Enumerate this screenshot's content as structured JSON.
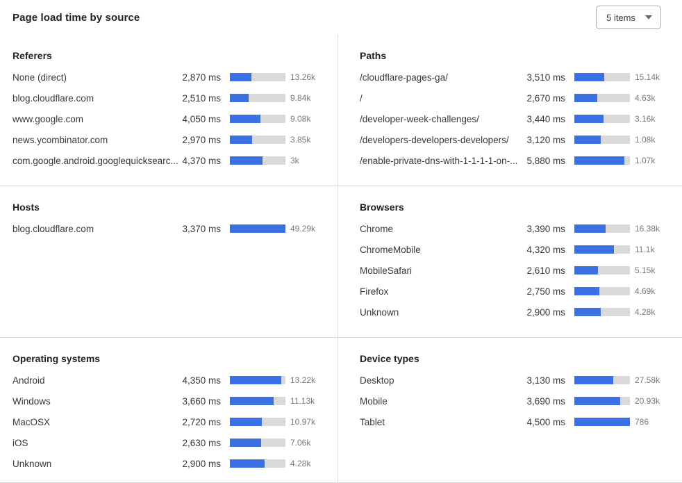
{
  "title": "Page load time by source",
  "dropdown": {
    "label": "5 items"
  },
  "colors": {
    "bar_fill": "#3b70e2",
    "bar_track": "#d9d9d9",
    "muted_text": "#797979",
    "divider": "#d9d9d9"
  },
  "chart_data": {
    "type": "bar",
    "unit": "ms",
    "title": "Page load time by source",
    "legend_position": "none",
    "panels": [
      {
        "title": "Referers",
        "id": "referers",
        "scale_max_ms": 7450,
        "rows": [
          {
            "label": "None (direct)",
            "ms": 2870,
            "ms_display": "2,870 ms",
            "count": "13.26k"
          },
          {
            "label": "blog.cloudflare.com",
            "ms": 2510,
            "ms_display": "2,510 ms",
            "count": "9.84k"
          },
          {
            "label": "www.google.com",
            "ms": 4050,
            "ms_display": "4,050 ms",
            "count": "9.08k"
          },
          {
            "label": "news.ycombinator.com",
            "ms": 2970,
            "ms_display": "2,970 ms",
            "count": "3.85k"
          },
          {
            "label": "com.google.android.googlequicksearc...",
            "ms": 4370,
            "ms_display": "4,370 ms",
            "count": "3k"
          }
        ]
      },
      {
        "title": "Paths",
        "id": "paths",
        "scale_max_ms": 6550,
        "rows": [
          {
            "label": "/cloudflare-pages-ga/",
            "ms": 3510,
            "ms_display": "3,510 ms",
            "count": "15.14k"
          },
          {
            "label": "/",
            "ms": 2670,
            "ms_display": "2,670 ms",
            "count": "4.63k"
          },
          {
            "label": "/developer-week-challenges/",
            "ms": 3440,
            "ms_display": "3,440 ms",
            "count": "3.16k"
          },
          {
            "label": "/developers-developers-developers/",
            "ms": 3120,
            "ms_display": "3,120 ms",
            "count": "1.08k"
          },
          {
            "label": "/enable-private-dns-with-1-1-1-1-on-...",
            "ms": 5880,
            "ms_display": "5,880 ms",
            "count": "1.07k"
          }
        ]
      },
      {
        "title": "Hosts",
        "id": "hosts",
        "scale_max_ms": 3370,
        "rows": [
          {
            "label": "blog.cloudflare.com",
            "ms": 3370,
            "ms_display": "3,370 ms",
            "count": "49.29k"
          }
        ]
      },
      {
        "title": "Browsers",
        "id": "browsers",
        "scale_max_ms": 6050,
        "rows": [
          {
            "label": "Chrome",
            "ms": 3390,
            "ms_display": "3,390 ms",
            "count": "16.38k"
          },
          {
            "label": "ChromeMobile",
            "ms": 4320,
            "ms_display": "4,320 ms",
            "count": "11.1k"
          },
          {
            "label": "MobileSafari",
            "ms": 2610,
            "ms_display": "2,610 ms",
            "count": "5.15k"
          },
          {
            "label": "Firefox",
            "ms": 2750,
            "ms_display": "2,750 ms",
            "count": "4.69k"
          },
          {
            "label": "Unknown",
            "ms": 2900,
            "ms_display": "2,900 ms",
            "count": "4.28k"
          }
        ]
      },
      {
        "title": "Operating systems",
        "id": "operating-systems",
        "scale_max_ms": 4680,
        "rows": [
          {
            "label": "Android",
            "ms": 4350,
            "ms_display": "4,350 ms",
            "count": "13.22k"
          },
          {
            "label": "Windows",
            "ms": 3660,
            "ms_display": "3,660 ms",
            "count": "11.13k"
          },
          {
            "label": "MacOSX",
            "ms": 2720,
            "ms_display": "2,720 ms",
            "count": "10.97k"
          },
          {
            "label": "iOS",
            "ms": 2630,
            "ms_display": "2,630 ms",
            "count": "7.06k"
          },
          {
            "label": "Unknown",
            "ms": 2900,
            "ms_display": "2,900 ms",
            "count": "4.28k"
          }
        ]
      },
      {
        "title": "Device types",
        "id": "device-types",
        "scale_max_ms": 4500,
        "rows": [
          {
            "label": "Desktop",
            "ms": 3130,
            "ms_display": "3,130 ms",
            "count": "27.58k"
          },
          {
            "label": "Mobile",
            "ms": 3690,
            "ms_display": "3,690 ms",
            "count": "20.93k"
          },
          {
            "label": "Tablet",
            "ms": 4500,
            "ms_display": "4,500 ms",
            "count": "786"
          }
        ]
      }
    ]
  }
}
